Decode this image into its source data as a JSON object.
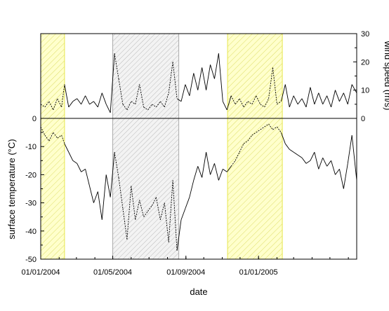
{
  "colors": {
    "summer_fill": "#ffffcc",
    "summer_edge": "#e6e64d",
    "summer_hatch": "#dddd66",
    "winter_fill": "#f3f3f3",
    "winter_edge": "#aaaaaa",
    "winter_hatch": "#bbbbbb",
    "line": "#000000"
  },
  "chart_data": {
    "type": "line",
    "x_axis": {
      "label": "date",
      "range": [
        "2004-01-01",
        "2005-06-15"
      ],
      "major_ticks": [
        "2004-01-01",
        "2004-05-01",
        "2004-09-01",
        "2005-01-01"
      ],
      "tick_labels": [
        "01/01/2004",
        "01/05/2004",
        "01/09/2004",
        "01/01/2005"
      ]
    },
    "left_axis": {
      "label": "surface temperature (°C)",
      "range": [
        -50,
        0
      ],
      "ticks": [
        0,
        -10,
        -20,
        -30,
        -40,
        -50
      ],
      "tick_labels": [
        "0",
        "-10",
        "-20",
        "-30",
        "-40",
        "-50"
      ]
    },
    "right_axis": {
      "label": "wind speed (m/s)",
      "range": [
        0,
        30
      ],
      "ticks": [
        0,
        10,
        20,
        30
      ],
      "tick_labels": [
        "0",
        "10",
        "20",
        "30"
      ]
    },
    "shaded_periods": [
      {
        "start": "2004-01-01",
        "end": "2004-02-10",
        "style": "summer"
      },
      {
        "start": "2004-05-01",
        "end": "2004-08-20",
        "style": "winter"
      },
      {
        "start": "2004-11-10",
        "end": "2005-02-10",
        "style": "summer"
      }
    ],
    "series": [
      {
        "quantity": "wind speed",
        "axis": "right",
        "points": [
          [
            "2004-01-01",
            5
          ],
          [
            "2004-01-08",
            4
          ],
          [
            "2004-01-15",
            6
          ],
          [
            "2004-01-22",
            3
          ],
          [
            "2004-01-29",
            7
          ],
          [
            "2004-02-05",
            4
          ],
          [
            "2004-02-10",
            12
          ],
          [
            "2004-02-17",
            4
          ],
          [
            "2004-02-24",
            6
          ],
          [
            "2004-03-02",
            7
          ],
          [
            "2004-03-09",
            5
          ],
          [
            "2004-03-16",
            8
          ],
          [
            "2004-03-23",
            5
          ],
          [
            "2004-03-30",
            6
          ],
          [
            "2004-04-06",
            4
          ],
          [
            "2004-04-13",
            9
          ],
          [
            "2004-04-20",
            5
          ],
          [
            "2004-04-27",
            2
          ],
          [
            "2004-05-04",
            23
          ],
          [
            "2004-05-11",
            14
          ],
          [
            "2004-05-18",
            5
          ],
          [
            "2004-05-25",
            3
          ],
          [
            "2004-06-01",
            6
          ],
          [
            "2004-06-08",
            5
          ],
          [
            "2004-06-15",
            12
          ],
          [
            "2004-06-22",
            4
          ],
          [
            "2004-06-29",
            3
          ],
          [
            "2004-07-06",
            5
          ],
          [
            "2004-07-13",
            4
          ],
          [
            "2004-07-20",
            6
          ],
          [
            "2004-07-27",
            4
          ],
          [
            "2004-08-03",
            9
          ],
          [
            "2004-08-10",
            20
          ],
          [
            "2004-08-17",
            7
          ],
          [
            "2004-08-24",
            6
          ],
          [
            "2004-08-31",
            12
          ],
          [
            "2004-09-07",
            8
          ],
          [
            "2004-09-14",
            16
          ],
          [
            "2004-09-21",
            10
          ],
          [
            "2004-09-28",
            18
          ],
          [
            "2004-10-05",
            10
          ],
          [
            "2004-10-12",
            19
          ],
          [
            "2004-10-19",
            14
          ],
          [
            "2004-10-26",
            23
          ],
          [
            "2004-11-02",
            6
          ],
          [
            "2004-11-09",
            3
          ],
          [
            "2004-11-16",
            8
          ],
          [
            "2004-11-23",
            5
          ],
          [
            "2004-11-30",
            7
          ],
          [
            "2004-12-07",
            4
          ],
          [
            "2004-12-14",
            6
          ],
          [
            "2004-12-21",
            5
          ],
          [
            "2004-12-28",
            8
          ],
          [
            "2005-01-04",
            5
          ],
          [
            "2005-01-11",
            4
          ],
          [
            "2005-01-18",
            7
          ],
          [
            "2005-01-25",
            18
          ],
          [
            "2005-02-01",
            5
          ],
          [
            "2005-02-08",
            6
          ],
          [
            "2005-02-15",
            12
          ],
          [
            "2005-02-22",
            4
          ],
          [
            "2005-03-01",
            8
          ],
          [
            "2005-03-08",
            5
          ],
          [
            "2005-03-15",
            7
          ],
          [
            "2005-03-22",
            4
          ],
          [
            "2005-03-29",
            11
          ],
          [
            "2005-04-05",
            5
          ],
          [
            "2005-04-12",
            9
          ],
          [
            "2005-04-19",
            5
          ],
          [
            "2005-04-26",
            8
          ],
          [
            "2005-05-03",
            4
          ],
          [
            "2005-05-10",
            10
          ],
          [
            "2005-05-17",
            6
          ],
          [
            "2005-05-24",
            9
          ],
          [
            "2005-05-31",
            5
          ],
          [
            "2005-06-07",
            12
          ],
          [
            "2005-06-15",
            9
          ]
        ]
      },
      {
        "quantity": "surface temperature",
        "axis": "left",
        "points": [
          [
            "2004-01-01",
            -3
          ],
          [
            "2004-01-08",
            -6
          ],
          [
            "2004-01-15",
            -8
          ],
          [
            "2004-01-22",
            -5
          ],
          [
            "2004-01-29",
            -7
          ],
          [
            "2004-02-05",
            -6
          ],
          [
            "2004-02-10",
            -9
          ],
          [
            "2004-02-17",
            -12
          ],
          [
            "2004-02-24",
            -15
          ],
          [
            "2004-03-02",
            -16
          ],
          [
            "2004-03-09",
            -19
          ],
          [
            "2004-03-16",
            -18
          ],
          [
            "2004-03-23",
            -24
          ],
          [
            "2004-03-30",
            -30
          ],
          [
            "2004-04-06",
            -26
          ],
          [
            "2004-04-13",
            -36
          ],
          [
            "2004-04-20",
            -20
          ],
          [
            "2004-04-27",
            -28
          ],
          [
            "2004-05-04",
            -12
          ],
          [
            "2004-05-11",
            -21
          ],
          [
            "2004-05-18",
            -32
          ],
          [
            "2004-05-25",
            -43
          ],
          [
            "2004-06-01",
            -24
          ],
          [
            "2004-06-08",
            -36
          ],
          [
            "2004-06-15",
            -29
          ],
          [
            "2004-06-22",
            -35
          ],
          [
            "2004-06-29",
            -33
          ],
          [
            "2004-07-06",
            -31
          ],
          [
            "2004-07-13",
            -28
          ],
          [
            "2004-07-20",
            -36
          ],
          [
            "2004-07-27",
            -30
          ],
          [
            "2004-08-03",
            -44
          ],
          [
            "2004-08-10",
            -22
          ],
          [
            "2004-08-17",
            -47
          ],
          [
            "2004-08-24",
            -36
          ],
          [
            "2004-08-31",
            -32
          ],
          [
            "2004-09-07",
            -28
          ],
          [
            "2004-09-14",
            -22
          ],
          [
            "2004-09-21",
            -17
          ],
          [
            "2004-09-28",
            -21
          ],
          [
            "2004-10-05",
            -12
          ],
          [
            "2004-10-12",
            -20
          ],
          [
            "2004-10-19",
            -16
          ],
          [
            "2004-10-26",
            -22
          ],
          [
            "2004-11-02",
            -18
          ],
          [
            "2004-11-09",
            -19
          ],
          [
            "2004-11-16",
            -17
          ],
          [
            "2004-11-23",
            -15
          ],
          [
            "2004-11-30",
            -12
          ],
          [
            "2004-12-07",
            -9
          ],
          [
            "2004-12-14",
            -8
          ],
          [
            "2004-12-21",
            -6
          ],
          [
            "2004-12-28",
            -5
          ],
          [
            "2005-01-04",
            -4
          ],
          [
            "2005-01-11",
            -3
          ],
          [
            "2005-01-18",
            -2
          ],
          [
            "2005-01-25",
            -4
          ],
          [
            "2005-02-01",
            -3
          ],
          [
            "2005-02-08",
            -5
          ],
          [
            "2005-02-15",
            -9
          ],
          [
            "2005-02-22",
            -11
          ],
          [
            "2005-03-01",
            -12
          ],
          [
            "2005-03-08",
            -13
          ],
          [
            "2005-03-15",
            -14
          ],
          [
            "2005-03-22",
            -16
          ],
          [
            "2005-03-29",
            -15
          ],
          [
            "2005-04-05",
            -12
          ],
          [
            "2005-04-12",
            -18
          ],
          [
            "2005-04-19",
            -14
          ],
          [
            "2005-04-26",
            -17
          ],
          [
            "2005-05-03",
            -15
          ],
          [
            "2005-05-10",
            -20
          ],
          [
            "2005-05-17",
            -18
          ],
          [
            "2005-05-24",
            -25
          ],
          [
            "2005-05-31",
            -16
          ],
          [
            "2005-06-07",
            -6
          ],
          [
            "2005-06-15",
            -22
          ]
        ]
      }
    ]
  }
}
